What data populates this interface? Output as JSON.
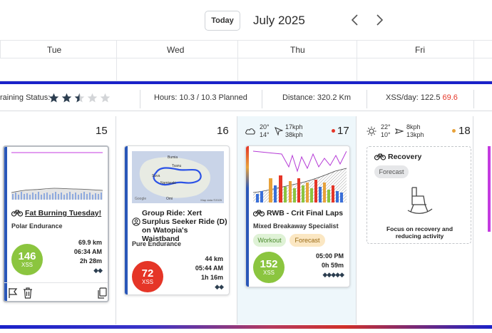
{
  "header": {
    "today_label": "Today",
    "month_title": "July 2025"
  },
  "days": [
    "Tue",
    "Wed",
    "Thu",
    "Fri"
  ],
  "stats": {
    "training_status_label": "raining Status:",
    "training_status_stars": 2.5,
    "training_status_max": 5,
    "hours": "Hours: 10.3 / 10.3 Planned",
    "distance": "Distance: 320.2 Km",
    "xss_day_label": "XSS/day: 122.5",
    "xss_day_extra": "69.6"
  },
  "columns": [
    {
      "date": "15",
      "card": {
        "title": "Fat Burning Tuesday!",
        "subtitle": "Polar Endurance",
        "xss": "146",
        "xss_label": "XSS",
        "xss_color": "#8bc53f",
        "distance": "69.9 km",
        "time": "06:34 AM",
        "duration": "2h 28m",
        "difficulty": "◆◆"
      }
    },
    {
      "date": "16",
      "card": {
        "title": "Group Ride: Xert Surplus Seeker Ride (D) on Watopia's Waistband",
        "subtitle": "Pure Endurance",
        "xss": "72",
        "xss_label": "XSS",
        "xss_color": "#e53527",
        "distance": "44 km",
        "time": "05:44 AM",
        "duration": "1h 16m",
        "difficulty": "◆◆",
        "map_labels": [
          "Bumia",
          "Tsanu",
          "Suva",
          "Namiwaki",
          "Omi"
        ],
        "map_attribution": "Map data ©2025",
        "map_logo": "Google"
      }
    },
    {
      "date": "17",
      "weather": {
        "temp_high": "20°",
        "temp_low": "14°",
        "wind": "17kph",
        "gust": "38kph"
      },
      "dot_color": "#e53527",
      "card": {
        "title": "RWB - Crit Final Laps",
        "subtitle": "Mixed Breakaway Specialist",
        "tag_workout": "Workout",
        "tag_forecast": "Forecast",
        "xss": "152",
        "xss_label": "XSS",
        "xss_color": "#8bc53f",
        "time": "05:00 PM",
        "duration": "0h 59m",
        "difficulty": "◆◆◆◆◆"
      }
    },
    {
      "date": "18",
      "weather": {
        "temp_high": "22°",
        "temp_low": "10°",
        "wind": "8kph",
        "gust": "13kph"
      },
      "dot_color": "#e8a23a",
      "card": {
        "title": "Recovery",
        "tag_forecast": "Forecast",
        "description": "Focus on recovery and reducing activity"
      }
    }
  ],
  "colors": {
    "accent_blue": "#1a22c9",
    "stripe_blue": "#2a57b8",
    "xss_green": "#8bc53f",
    "xss_red": "#e53527"
  }
}
